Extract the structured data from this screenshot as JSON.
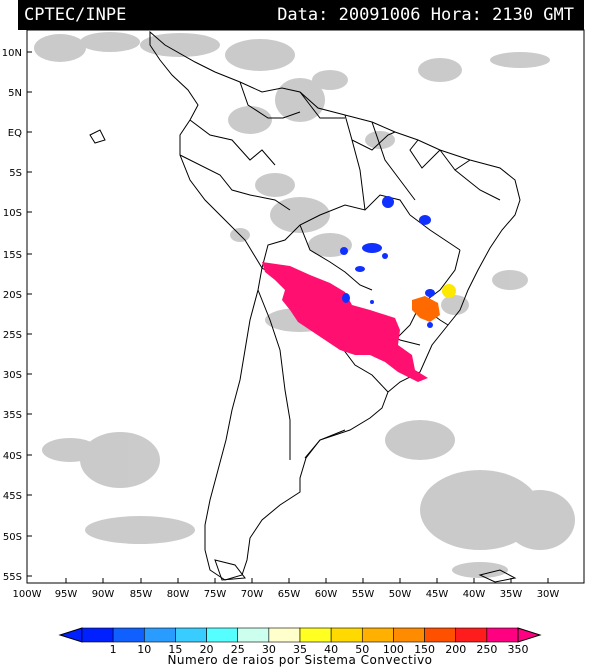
{
  "header": {
    "source": "CPTEC/INPE",
    "stamp": "Data: 20091006 Hora: 2130 GMT"
  },
  "axes": {
    "latitudes": [
      "10N",
      "5N",
      "EQ",
      "5S",
      "10S",
      "15S",
      "20S",
      "25S",
      "30S",
      "35S",
      "40S",
      "45S",
      "50S",
      "55S"
    ],
    "longitudes": [
      "100W",
      "95W",
      "90W",
      "85W",
      "80W",
      "75W",
      "70W",
      "65W",
      "60W",
      "55W",
      "50W",
      "45W",
      "40W",
      "35W",
      "30W"
    ]
  },
  "colorbar": {
    "title": "Numero de raios por Sistema Convectivo",
    "labels": [
      "1",
      "10",
      "15",
      "20",
      "25",
      "30",
      "35",
      "40",
      "50",
      "100",
      "150",
      "200",
      "250",
      "350"
    ],
    "colors": [
      "#0020ff",
      "#1060ff",
      "#2a9cff",
      "#38ccff",
      "#55ffff",
      "#ccffee",
      "#ffffcc",
      "#ffff22",
      "#ffd900",
      "#ffb000",
      "#ff8c00",
      "#ff5000",
      "#ff1c1c",
      "#ff0080"
    ]
  },
  "lightning_colors": {
    "magenta": "#ff1070",
    "blue": "#1030ff",
    "orange": "#ff6a00",
    "yellow": "#ffe800"
  }
}
